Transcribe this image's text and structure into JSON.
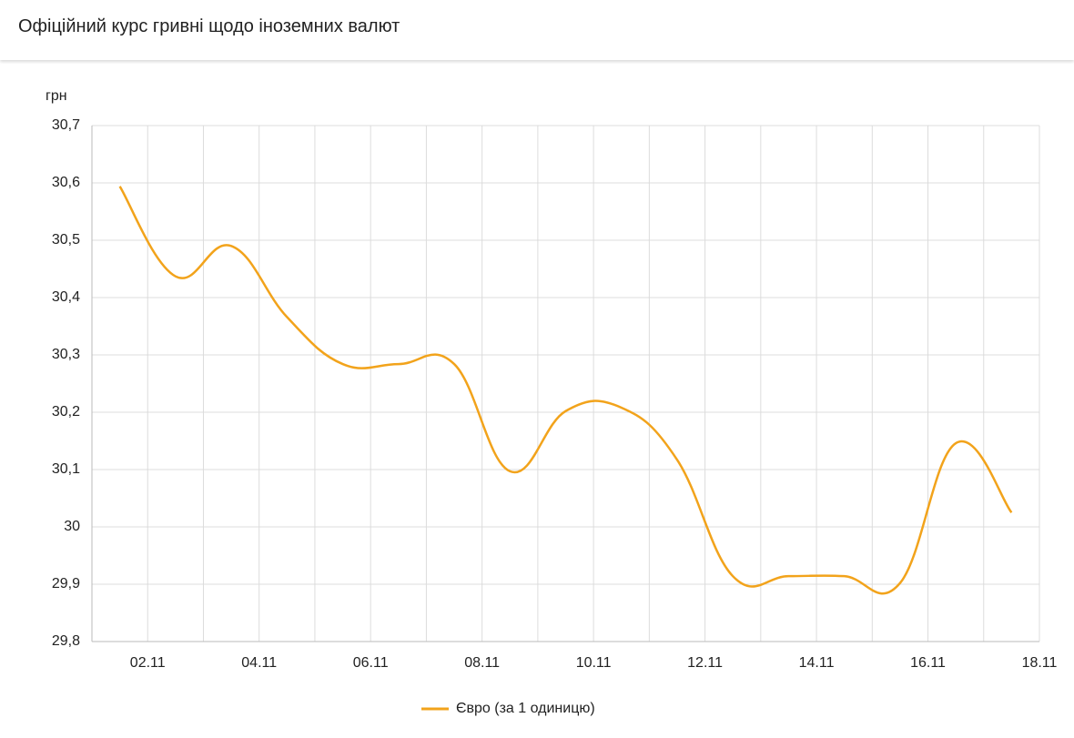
{
  "header": {
    "title": "Офіційний курс гривні щодо іноземних валют"
  },
  "chart_data": {
    "type": "line",
    "y_unit": "грн",
    "categories": [
      null,
      null,
      null,
      null,
      null,
      null,
      null,
      null,
      null,
      null,
      null,
      null,
      null,
      null,
      null,
      null,
      null
    ],
    "xticks": [
      "02.11",
      "04.11",
      "06.11",
      "08.11",
      "10.11",
      "12.11",
      "14.11",
      "16.11",
      "18.11"
    ],
    "series": [
      {
        "name": "Євро (за 1 одиницю)",
        "color": "#f2a31b",
        "values": [
          30.594,
          30.437,
          30.49,
          30.366,
          30.284,
          30.284,
          30.284,
          30.097,
          30.202,
          30.208,
          30.117,
          29.914,
          29.914,
          29.914,
          29.902,
          30.146,
          30.025
        ]
      }
    ],
    "ylim": [
      29.8,
      30.7
    ],
    "yticks": [
      {
        "value": 29.8,
        "label": "29,8"
      },
      {
        "value": 29.9,
        "label": "29,9"
      },
      30,
      {
        "value": 30.1,
        "label": "30,1"
      },
      {
        "value": 30.2,
        "label": "30,2"
      },
      {
        "value": 30.3,
        "label": "30,3"
      },
      {
        "value": 30.4,
        "label": "30,4"
      },
      {
        "value": 30.5,
        "label": "30,5"
      },
      {
        "value": 30.6,
        "label": "30,6"
      },
      {
        "value": 30.7,
        "label": "30,7"
      }
    ],
    "grid": true,
    "legend": "bottom"
  }
}
